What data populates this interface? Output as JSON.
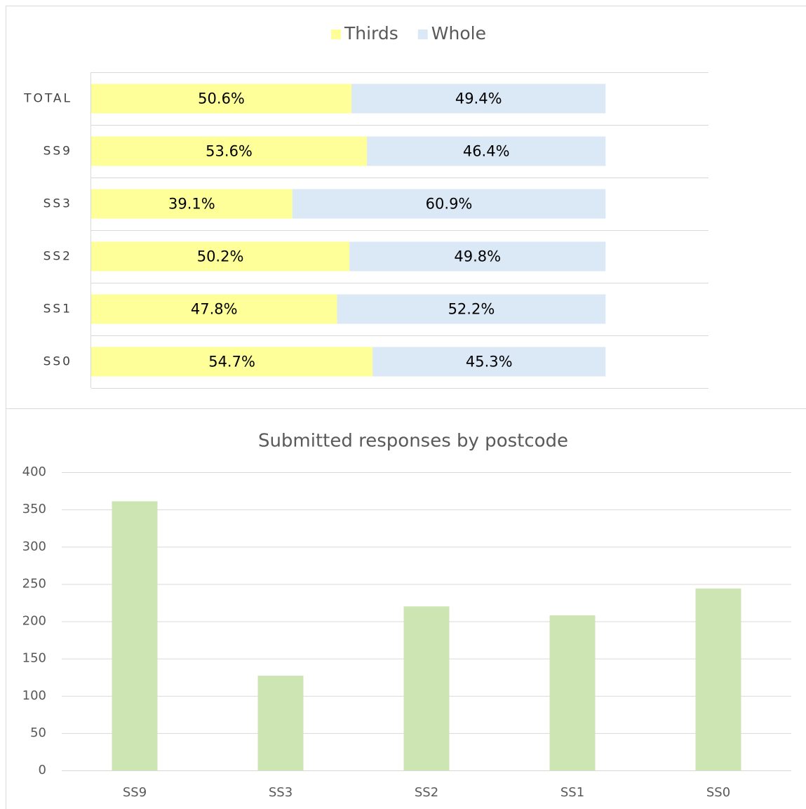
{
  "chart_data": [
    {
      "type": "stacked-barh",
      "categories": [
        "TOTAL",
        "SS9",
        "SS3",
        "SS2",
        "SS1",
        "SS0"
      ],
      "series": [
        {
          "name": "Thirds",
          "color": "#ffff99",
          "values": [
            50.6,
            53.6,
            39.1,
            50.2,
            47.8,
            54.7
          ],
          "value_labels": [
            "50.6%",
            "53.6%",
            "39.1%",
            "50.2%",
            "47.8%",
            "54.7%"
          ]
        },
        {
          "name": "Whole",
          "color": "#dbe9f6",
          "values": [
            49.4,
            46.4,
            60.9,
            49.8,
            52.2,
            45.3
          ],
          "value_labels": [
            "49.4%",
            "46.4%",
            "60.9%",
            "49.8%",
            "52.2%",
            "45.3%"
          ]
        }
      ],
      "xlim": [
        0,
        120
      ],
      "legend": "top"
    },
    {
      "type": "bar",
      "title": "Submitted responses by postcode",
      "categories": [
        "SS9",
        "SS3",
        "SS2",
        "SS1",
        "SS0"
      ],
      "values": [
        361,
        127,
        220,
        208,
        244
      ],
      "color": "#cde5b2",
      "ylim": [
        0,
        400
      ],
      "yticks": [
        0,
        50,
        100,
        150,
        200,
        250,
        300,
        350,
        400
      ],
      "grid": true
    }
  ]
}
